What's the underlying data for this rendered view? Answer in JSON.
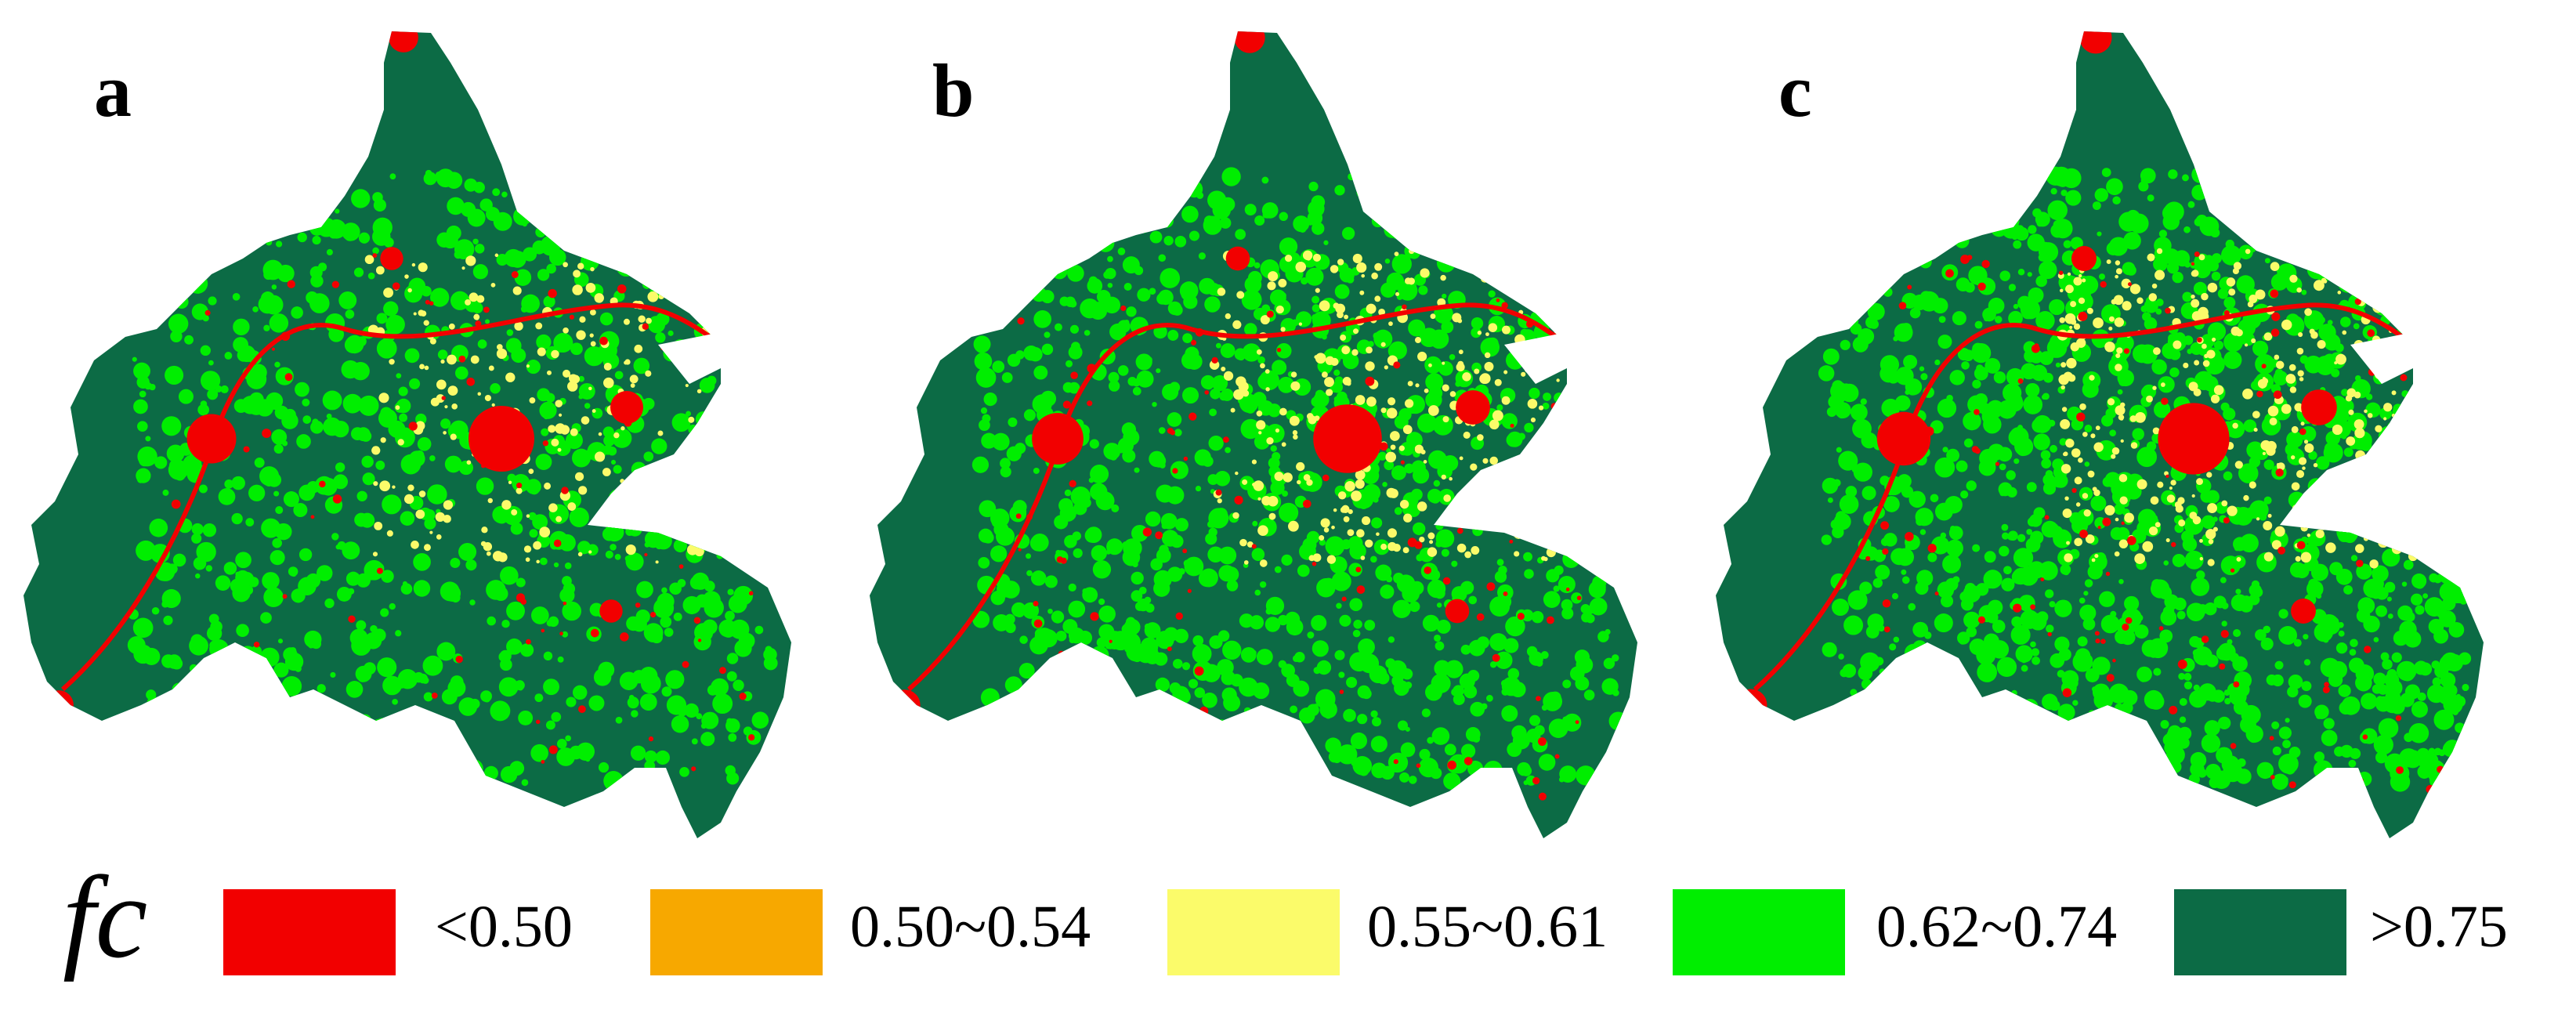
{
  "panels": [
    {
      "label": "a"
    },
    {
      "label": "b"
    },
    {
      "label": "c"
    }
  ],
  "legend": {
    "title": "fc",
    "classes": [
      {
        "label": "<0.50",
        "color": "#f20000"
      },
      {
        "label": "0.50~0.54",
        "color": "#f7a800"
      },
      {
        "label": "0.55~0.61",
        "color": "#fbfb6a"
      },
      {
        "label": "0.62~0.74",
        "color": "#00ee00"
      },
      {
        "label": ">0.75",
        "color": "#0c6b45"
      }
    ]
  },
  "colors": {
    "dark_green": "#0c6b45",
    "bright_green": "#00ee00",
    "yellow": "#fbfb6a",
    "orange": "#f7a800",
    "red": "#f20000"
  }
}
